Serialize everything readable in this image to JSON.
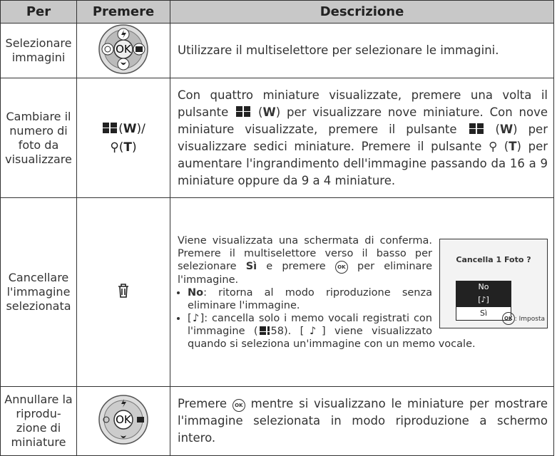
{
  "table": {
    "header": [
      "Per",
      "Premere",
      "Descrizione"
    ],
    "rows": [
      {
        "per": [
          "Selezionare",
          "immagini"
        ],
        "premere": [
          "OK"
        ],
        "descrizione": [
          "Utilizzare il multiselettore per selezionare le immagini."
        ]
      },
      {
        "per": [
          "Cambiare il",
          "numero di",
          "foto da",
          "visualizzare"
        ],
        "premere": [
          "(",
          "W",
          ")/",
          "(",
          "T",
          ")"
        ],
        "descrizione": [
          "Con quattro miniature visualizzate, premere una volta il pulsante",
          " (",
          "W",
          ") per visualizzare nove miniature. Con nove miniature visualizzate, premere il pulsante",
          " (",
          "W",
          ") per visualizzare sedici miniature. Premere il pulsante",
          " (",
          "T",
          ") per aumentare l'ingrandimento dell'immagine passando da 16 a 9 miniature oppure da 9 a 4 miniature."
        ]
      },
      {
        "per": [
          "Cancellare",
          "l'immagine",
          "selezionata"
        ],
        "premere": [],
        "descrizione": [
          "Viene visualizzata una schermata di conferma. Premere il multiselettore verso il basso per selezionare ",
          "Sì",
          " e premere ",
          "OK",
          " per eliminare l'immagine."
        ],
        "bullets": [
          [
            "No",
            ": ritorna al modo riproduzione senza eliminare l'immagine."
          ],
          [
            "[♪]",
            ": cancella solo i memo vocali registrati con l'immagine (",
            "58). ",
            "[♪]",
            " viene visualizzato quando si seleziona un'immagine con un memo vocale."
          ]
        ],
        "screen": {
          "title": "Cancella 1 Foto ?",
          "options": [
            "No",
            "[♪]",
            "Sì"
          ],
          "ok": "OK",
          "hint": ": Imposta"
        }
      },
      {
        "per": [
          "Annullare la",
          "riprodu-",
          "zione di",
          "miniature"
        ],
        "premere": [
          "OK"
        ],
        "descrizione": [
          "Premere ",
          "OK",
          " mentre si visualizzano le miniature per mostrare l'immagine selezionata in modo riproduzione a schermo intero."
        ]
      }
    ]
  }
}
